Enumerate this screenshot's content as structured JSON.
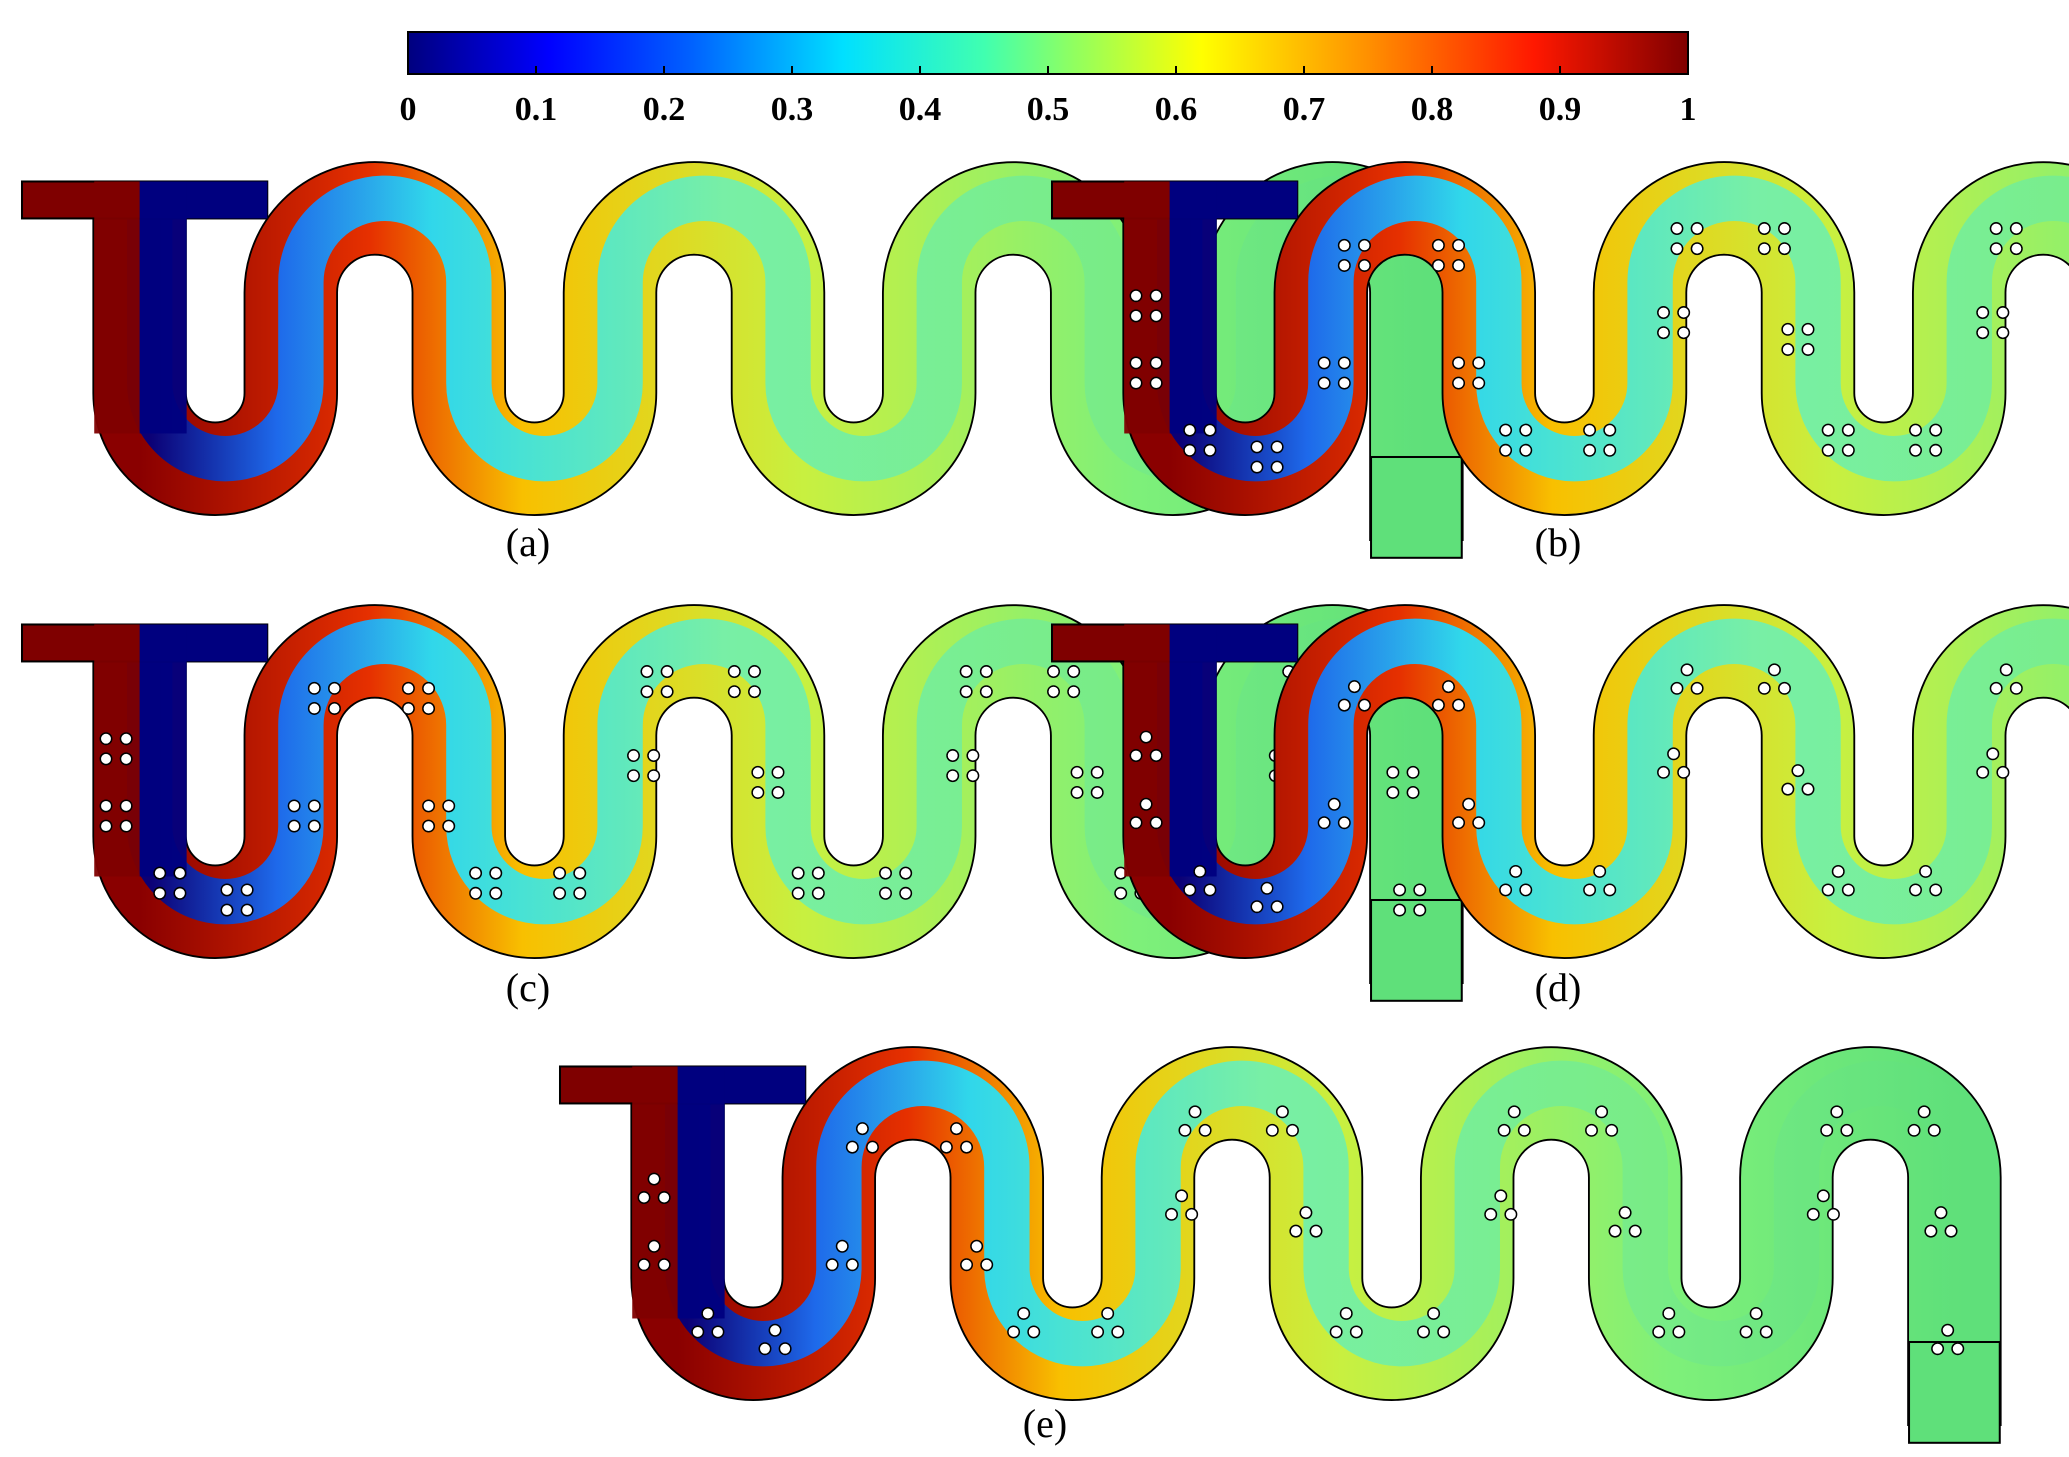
{
  "colorbar": {
    "ticks": [
      "0",
      "0.1",
      "0.2",
      "0.3",
      "0.4",
      "0.5",
      "0.6",
      "0.7",
      "0.8",
      "0.9",
      "1"
    ],
    "range": [
      0,
      1
    ],
    "colormap": "jet",
    "colors": [
      "#00007f",
      "#0000ff",
      "#007fff",
      "#00ffff",
      "#7fff7f",
      "#ffff00",
      "#ff7f00",
      "#ff0000",
      "#7f0000"
    ]
  },
  "panels": [
    {
      "label": "(a)",
      "obstacles": false,
      "dots_per_cluster": 0
    },
    {
      "label": "(b)",
      "obstacles": true,
      "dots_per_cluster": 4
    },
    {
      "label": "(c)",
      "obstacles": true,
      "dots_per_cluster": 4
    },
    {
      "label": "(d)",
      "obstacles": true,
      "dots_per_cluster": 3
    },
    {
      "label": "(e)",
      "obstacles": true,
      "dots_per_cluster": 3
    }
  ],
  "colors": {
    "channel_outline": "#000000",
    "obstacle_fill": "#ffffff",
    "inlet_high": "#7f0000",
    "inlet_low": "#00007f",
    "outlet_mixed": "#5fe07a"
  }
}
